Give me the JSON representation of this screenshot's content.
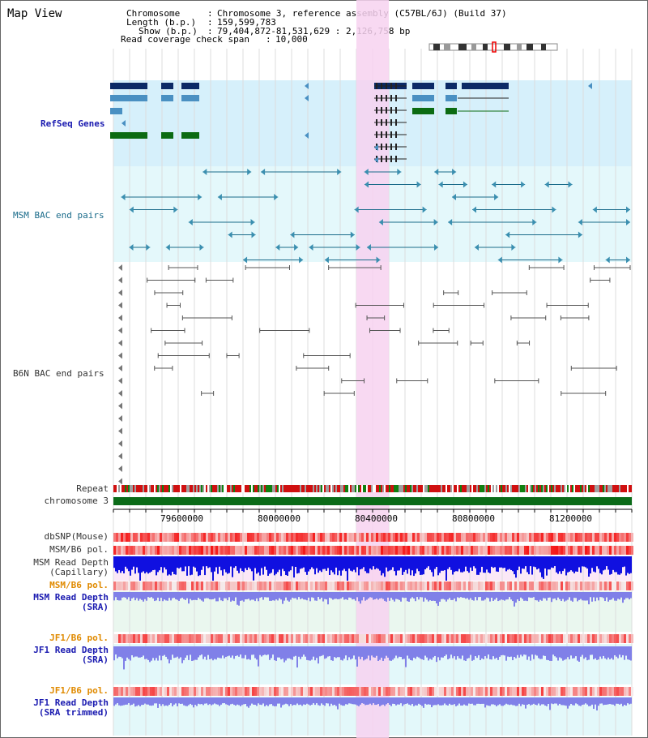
{
  "title": "Map View",
  "header": {
    "chromosome_key": "Chromosome",
    "chromosome_val": "Chromosome 3, reference assembly (C57BL/6J) (Build 37)",
    "length_key": "Length (b.p.)",
    "length_val": "159,599,783",
    "show_key": "Show (b.p.)",
    "show_val": "79,404,872-81,531,629 : 2,126,758 bp",
    "span_key": "Read coverage check span",
    "span_val": "10,000"
  },
  "tracks": {
    "refseq": "RefSeq Genes",
    "msm_bac": "MSM BAC end pairs",
    "b6n_bac": "B6N BAC end pairs",
    "repeat": "Repeat",
    "chromosome": "chromosome 3",
    "dbsnp": "dbSNP(Mouse)",
    "msm_b6_pol_1": "MSM/B6 pol.",
    "msm_read_depth_cap_1": "MSM Read Depth",
    "msm_read_depth_cap_2": "(Capillary)",
    "msm_b6_pol_2": "MSM/B6 pol.",
    "msm_read_depth_sra_1": "MSM Read Depth",
    "msm_read_depth_sra_2": "(SRA)",
    "jf1_b6_pol_1": "JF1/B6 pol.",
    "jf1_read_depth_sra_1": "JF1 Read Depth",
    "jf1_read_depth_sra_2": "(SRA)",
    "jf1_b6_pol_2": "JF1/B6 pol.",
    "jf1_read_depth_trim_1": "JF1 Read Depth",
    "jf1_read_depth_trim_2": "(SRA trimmed)"
  },
  "axis_ticks": [
    "79600000",
    "80000000",
    "80400000",
    "80800000",
    "81200000"
  ],
  "colors": {
    "refseq_bg": "#d6f0fb",
    "msm_bg": "#e4f8fb",
    "highlight": "#f7d2f0",
    "chromosome_bar": "#0b6b18",
    "gene_dark": "#0c2a66",
    "gene_mid": "#4a90c2",
    "gene_green": "#0c6b12",
    "msm_line": "#1a6b8a",
    "b6n_line": "#555555",
    "depth_blue": "#1010e0",
    "depth_light": "#8080e8"
  }
}
